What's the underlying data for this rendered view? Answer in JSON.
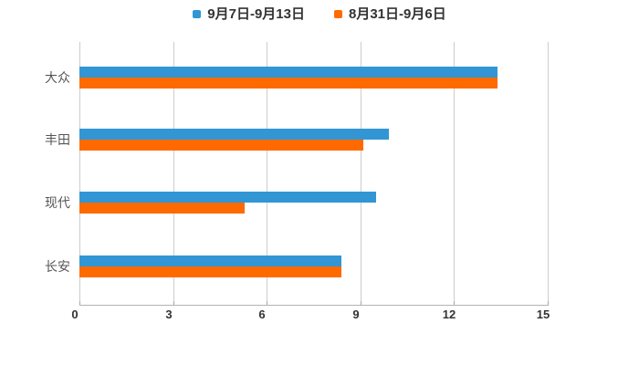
{
  "chart_data": {
    "type": "bar",
    "orientation": "horizontal",
    "title": "",
    "categories": [
      "大众",
      "丰田",
      "现代",
      "长安"
    ],
    "series": [
      {
        "name": "9月7日-9月13日",
        "color": "#3296d4",
        "values": [
          13.4,
          9.9,
          9.5,
          8.4
        ]
      },
      {
        "name": "8月31日-9月6日",
        "color": "#ff6a00",
        "values": [
          13.4,
          9.1,
          5.3,
          8.4
        ]
      }
    ],
    "x_ticks": [
      "0",
      "3",
      "6",
      "9",
      "12",
      "15"
    ],
    "x_tick_values": [
      0,
      3,
      6,
      9,
      12,
      15
    ],
    "xlim": [
      0,
      15
    ],
    "xlabel": "",
    "ylabel": "",
    "grid": true,
    "legend_position": "top",
    "colors": {
      "grid_line": "#cccccc",
      "axis_line": "#b3b3b3",
      "tick_label": "#333333",
      "category_label": "#565656",
      "legend_label": "#333333",
      "background": "#ffffff"
    }
  }
}
